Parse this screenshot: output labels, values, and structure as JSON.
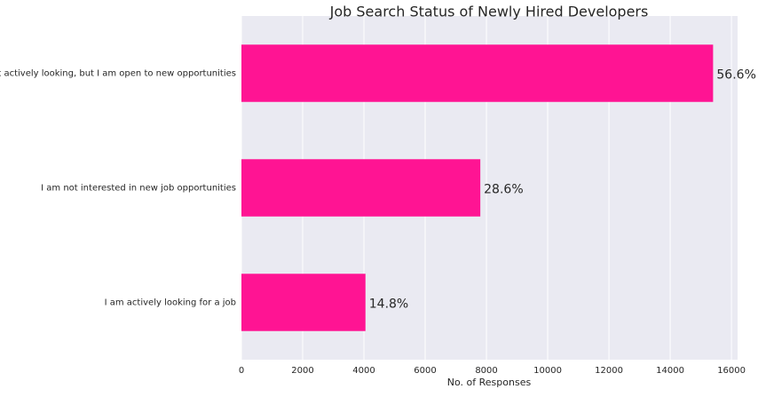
{
  "chart_data": {
    "type": "barh",
    "title": "Job Search Status of Newly Hired Developers",
    "xlabel": "No. of Responses",
    "categories": [
      "I’m not actively looking, but I am open to new opportunities",
      "I am not interested in new job opportunities",
      "I am actively looking for a job"
    ],
    "values": [
      15400,
      7800,
      4050
    ],
    "annotations": [
      "56.6%",
      "28.6%",
      "14.8%"
    ],
    "color": "#ff1493",
    "xlim": [
      0,
      16200
    ],
    "xticks": [
      0,
      2000,
      4000,
      6000,
      8000,
      10000,
      12000,
      14000,
      16000
    ],
    "grid": true
  }
}
